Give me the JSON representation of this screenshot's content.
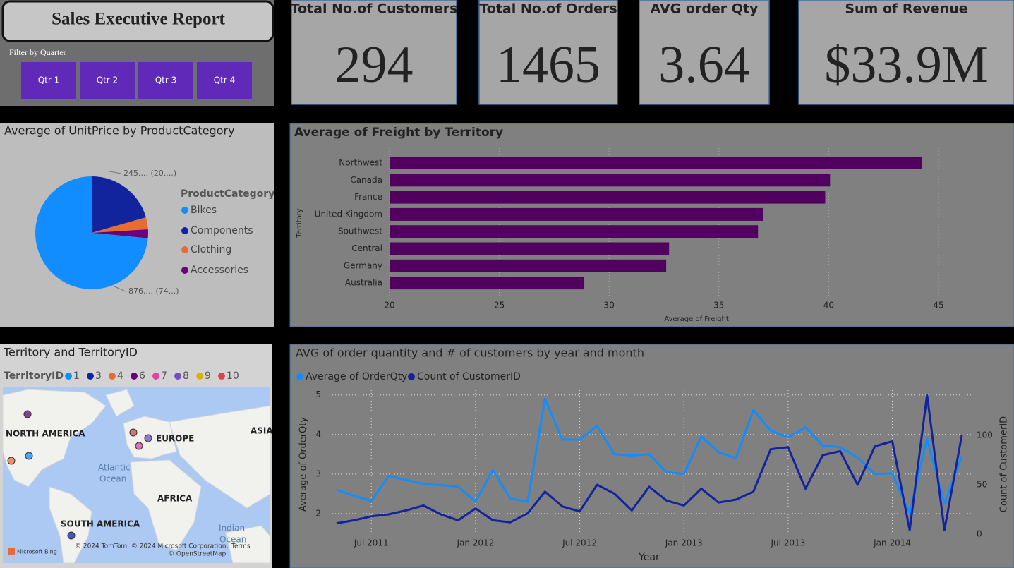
{
  "header": {
    "title": "Sales Executive Report",
    "filter_label": "Filter by Quarter",
    "buttons": [
      "Qtr 1",
      "Qtr 2",
      "Qtr 3",
      "Qtr 4"
    ]
  },
  "kpis": [
    {
      "label": "Total No.of Customers",
      "value": 294
    },
    {
      "label": "Total No.of Orders",
      "value": 1465
    },
    {
      "label": "AVG order Qty",
      "value": 3.64
    },
    {
      "label": "Sum of Revenue",
      "value": 33900000,
      "value_label": "$33.9M"
    }
  ],
  "chart_data": [
    {
      "type": "pie",
      "title": "Average of UnitPrice by ProductCategory",
      "legend_title": "ProductCategory",
      "categories": [
        "Bikes",
        "Components",
        "Clothing",
        "Accessories"
      ],
      "values": [
        876,
        245,
        41,
        30
      ],
      "value_labels": [
        "876.... (74...)",
        "245.... (20....)",
        null,
        null
      ],
      "colors": [
        "#118dff",
        "#12239e",
        "#e66c37",
        "#6b007b"
      ]
    },
    {
      "type": "bar",
      "orientation": "horizontal",
      "title": "Average of Freight by Territory",
      "categories": [
        "Northwest",
        "Canada",
        "France",
        "United Kingdom",
        "Southwest",
        "Central",
        "Germany",
        "Australia"
      ],
      "values": [
        44.24,
        40.06,
        39.84,
        37.0,
        36.78,
        32.73,
        32.6,
        28.87
      ],
      "color": "#520060",
      "xlim": [
        20,
        45
      ],
      "xticks": [
        20,
        25,
        30,
        35,
        40,
        45
      ],
      "xlabel": "Average of Freight",
      "ylabel": "Territory",
      "grid": true
    },
    {
      "type": "line",
      "title": "AVG of order quantity and # of customers by year and month",
      "x": [
        "2011-05",
        "2011-06",
        "2011-07",
        "2011-08",
        "2011-09",
        "2011-10",
        "2011-11",
        "2011-12",
        "2012-01",
        "2012-02",
        "2012-03",
        "2012-04",
        "2012-05",
        "2012-06",
        "2012-07",
        "2012-08",
        "2012-09",
        "2012-10",
        "2012-11",
        "2012-12",
        "2013-01",
        "2013-02",
        "2013-03",
        "2013-04",
        "2013-05",
        "2013-06",
        "2013-07",
        "2013-08",
        "2013-09",
        "2013-10",
        "2013-11",
        "2013-12",
        "2014-01",
        "2014-02",
        "2014-03",
        "2014-04",
        "2014-05"
      ],
      "series": [
        {
          "name": "Average of OrderQty",
          "color": "#118dff",
          "values": [
            2.6,
            2.45,
            2.32,
            2.95,
            2.85,
            2.75,
            2.72,
            2.68,
            2.3,
            3.1,
            2.38,
            2.3,
            4.9,
            3.87,
            3.87,
            4.22,
            3.5,
            3.47,
            3.5,
            3.05,
            3.0,
            3.95,
            3.55,
            3.4,
            4.62,
            4.1,
            3.93,
            4.18,
            3.72,
            3.68,
            3.42,
            3.0,
            3.02,
            2.0,
            3.9,
            2.25,
            3.45
          ]
        },
        {
          "name": "Count of CustomerID",
          "color": "#12239e",
          "axis": "y2",
          "values": [
            11,
            14,
            18,
            20,
            24,
            29,
            20,
            14,
            26,
            14,
            12,
            21,
            43,
            28,
            23,
            50,
            41,
            24,
            48,
            34,
            29,
            46,
            32,
            35,
            43,
            86,
            88,
            46,
            80,
            84,
            50,
            89,
            94,
            4,
            141,
            4,
            100
          ]
        }
      ],
      "xlim": [
        "2011-05",
        "2014-05"
      ],
      "xticks": [
        {
          "value": "2011-07",
          "label": "Jul 2011"
        },
        {
          "value": "2012-01",
          "label": "Jan 2012"
        },
        {
          "value": "2012-07",
          "label": "Jul 2012"
        },
        {
          "value": "2013-01",
          "label": "Jan 2013"
        },
        {
          "value": "2013-07",
          "label": "Jul 2013"
        },
        {
          "value": "2014-01",
          "label": "Jan 2014"
        }
      ],
      "ylim": [
        1.48,
        5.12
      ],
      "yticks": [
        2,
        3,
        4,
        5
      ],
      "y2lim": [
        0,
        145.7
      ],
      "y2ticks": [
        0,
        50,
        100
      ],
      "xlabel": "Year",
      "ylabel": "Average of OrderQty",
      "y2label": "Count of CustomerID",
      "grid": true
    }
  ],
  "map": {
    "title": "Territory and TerritoryID",
    "legend_title": "TerritoryID",
    "items": [
      {
        "name": "1",
        "color": "#118dff"
      },
      {
        "name": "3",
        "color": "#12239e"
      },
      {
        "name": "4",
        "color": "#e66c37"
      },
      {
        "name": "6",
        "color": "#6b007b"
      },
      {
        "name": "7",
        "color": "#e044a7"
      },
      {
        "name": "8",
        "color": "#744ec2"
      },
      {
        "name": "9",
        "color": "#d9b300"
      },
      {
        "name": "10",
        "color": "#d64550"
      }
    ],
    "places": [
      "NORTH AMERICA",
      "EUROPE",
      "ASIA",
      "Atlantic",
      "Ocean",
      "AFRICA",
      "SOUTH AMERICA",
      "Indian",
      "Ocean"
    ],
    "attribution": [
      "Microsoft Bing",
      "© 2024 TomTom, © 2024 Microsoft Corporation,",
      "Terms",
      "© OpenStreetMap"
    ]
  }
}
